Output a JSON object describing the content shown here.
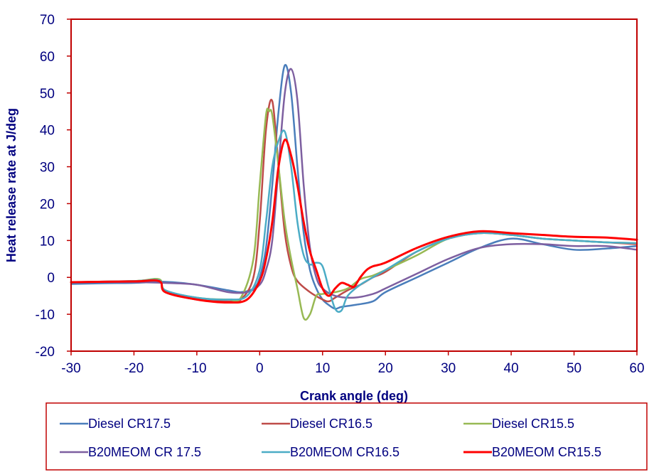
{
  "chart_data": {
    "type": "line",
    "title": "",
    "xlabel": "Crank angle (deg)",
    "ylabel": "Heat release rate at J/deg",
    "xlim": [
      -30,
      60
    ],
    "ylim": [
      -20,
      70
    ],
    "xticks": [
      -30,
      -20,
      -10,
      0,
      10,
      20,
      30,
      40,
      50,
      60
    ],
    "yticks": [
      -20,
      -10,
      0,
      10,
      20,
      30,
      40,
      50,
      60,
      70
    ],
    "grid": false,
    "legend_position": "bottom",
    "series": [
      {
        "name": "Diesel CR17.5",
        "color": "#4A7EBB",
        "width": 2.5,
        "points": [
          [
            -30,
            -1.8
          ],
          [
            -25,
            -1.6
          ],
          [
            -20,
            -1.5
          ],
          [
            -15,
            -1.2
          ],
          [
            -10,
            -2
          ],
          [
            -5,
            -3.5
          ],
          [
            -3,
            -4
          ],
          [
            -1,
            -3
          ],
          [
            0,
            0
          ],
          [
            1,
            8
          ],
          [
            2,
            25
          ],
          [
            3,
            45
          ],
          [
            4,
            57.5
          ],
          [
            5,
            50
          ],
          [
            6,
            30
          ],
          [
            7,
            12
          ],
          [
            8,
            2
          ],
          [
            9,
            -3
          ],
          [
            10,
            -6
          ],
          [
            11,
            -7.5
          ],
          [
            12,
            -8.5
          ],
          [
            13,
            -8
          ],
          [
            15,
            -7.5
          ],
          [
            18,
            -6.5
          ],
          [
            20,
            -4
          ],
          [
            25,
            0
          ],
          [
            30,
            4
          ],
          [
            35,
            8
          ],
          [
            40,
            10.5
          ],
          [
            45,
            9
          ],
          [
            50,
            7.5
          ],
          [
            55,
            7.8
          ],
          [
            60,
            8.5
          ]
        ]
      },
      {
        "name": "Diesel CR16.5",
        "color": "#BE4B48",
        "width": 2.5,
        "points": [
          [
            -30,
            -1.3
          ],
          [
            -20,
            -1
          ],
          [
            -16,
            -0.8
          ],
          [
            -15,
            -4
          ],
          [
            -10,
            -6
          ],
          [
            -5,
            -6.5
          ],
          [
            -3,
            -6
          ],
          [
            -1,
            0
          ],
          [
            0,
            15
          ],
          [
            1,
            40
          ],
          [
            2,
            47.8
          ],
          [
            3,
            30
          ],
          [
            4,
            12
          ],
          [
            5,
            3
          ],
          [
            6,
            -1
          ],
          [
            8,
            -4
          ],
          [
            10,
            -6
          ],
          [
            11,
            -6.5
          ],
          [
            12,
            -5.5
          ],
          [
            14,
            -3.5
          ],
          [
            16,
            -2
          ],
          [
            18,
            0
          ],
          [
            20,
            1.5
          ],
          [
            25,
            7
          ],
          [
            30,
            10.5
          ],
          [
            35,
            12
          ],
          [
            40,
            11.5
          ],
          [
            45,
            10.5
          ],
          [
            50,
            10
          ],
          [
            55,
            9.5
          ],
          [
            60,
            9
          ]
        ]
      },
      {
        "name": "Diesel CR15.5",
        "color": "#98B954",
        "width": 2.5,
        "points": [
          [
            -30,
            -1.3
          ],
          [
            -20,
            -1
          ],
          [
            -16,
            -0.5
          ],
          [
            -15,
            -3.5
          ],
          [
            -10,
            -5.5
          ],
          [
            -5,
            -6
          ],
          [
            -3,
            -5.5
          ],
          [
            -1,
            5
          ],
          [
            0,
            25
          ],
          [
            1,
            44
          ],
          [
            1.5,
            45
          ],
          [
            2,
            44
          ],
          [
            3,
            30
          ],
          [
            4,
            15
          ],
          [
            5,
            5
          ],
          [
            6,
            -3
          ],
          [
            7,
            -11
          ],
          [
            8,
            -10
          ],
          [
            9,
            -5
          ],
          [
            10,
            -4.5
          ],
          [
            12,
            -4
          ],
          [
            14,
            -3
          ],
          [
            16,
            -0.5
          ],
          [
            18,
            0.5
          ],
          [
            20,
            2
          ],
          [
            25,
            6
          ],
          [
            30,
            10.5
          ],
          [
            35,
            12
          ],
          [
            40,
            11.5
          ],
          [
            45,
            10.5
          ],
          [
            50,
            10
          ],
          [
            55,
            9.5
          ],
          [
            60,
            9.3
          ]
        ]
      },
      {
        "name": "B20MEOM CR 17.5",
        "color": "#7D5FA0",
        "width": 2.5,
        "points": [
          [
            -30,
            -1.3
          ],
          [
            -20,
            -1.3
          ],
          [
            -15,
            -1.5
          ],
          [
            -10,
            -2
          ],
          [
            -5,
            -4
          ],
          [
            -2,
            -4
          ],
          [
            0,
            -2
          ],
          [
            1,
            2
          ],
          [
            2,
            10
          ],
          [
            3,
            30
          ],
          [
            4,
            50
          ],
          [
            5,
            56.5
          ],
          [
            6,
            48
          ],
          [
            7,
            25
          ],
          [
            8,
            8
          ],
          [
            9,
            0
          ],
          [
            10,
            -3
          ],
          [
            12,
            -5
          ],
          [
            15,
            -5.5
          ],
          [
            18,
            -4.5
          ],
          [
            20,
            -3
          ],
          [
            25,
            1
          ],
          [
            30,
            5
          ],
          [
            35,
            8
          ],
          [
            40,
            9
          ],
          [
            45,
            9
          ],
          [
            50,
            8.5
          ],
          [
            55,
            8.5
          ],
          [
            60,
            7.5
          ]
        ]
      },
      {
        "name": "B20MEOM CR16.5",
        "color": "#4BACC6",
        "width": 2.5,
        "points": [
          [
            -30,
            -1.3
          ],
          [
            -20,
            -1
          ],
          [
            -16,
            -0.8
          ],
          [
            -15,
            -3.5
          ],
          [
            -10,
            -5.5
          ],
          [
            -5,
            -6
          ],
          [
            -2,
            -5
          ],
          [
            0,
            2
          ],
          [
            1,
            15
          ],
          [
            2,
            30
          ],
          [
            3,
            37
          ],
          [
            4,
            39.5
          ],
          [
            5,
            30
          ],
          [
            6,
            15
          ],
          [
            7,
            6
          ],
          [
            8,
            3.5
          ],
          [
            9,
            4
          ],
          [
            10,
            3
          ],
          [
            11,
            -3
          ],
          [
            12,
            -8.5
          ],
          [
            13,
            -9
          ],
          [
            14,
            -5
          ],
          [
            16,
            -2
          ],
          [
            18,
            0
          ],
          [
            20,
            2
          ],
          [
            25,
            7
          ],
          [
            30,
            10.5
          ],
          [
            35,
            12
          ],
          [
            40,
            11.5
          ],
          [
            45,
            10.5
          ],
          [
            50,
            10
          ],
          [
            55,
            9.5
          ],
          [
            60,
            9.3
          ]
        ]
      },
      {
        "name": "B20MEOM CR15.5",
        "color": "#FF0000",
        "width": 3,
        "points": [
          [
            -30,
            -1.3
          ],
          [
            -20,
            -1.1
          ],
          [
            -16,
            -1
          ],
          [
            -15,
            -4
          ],
          [
            -10,
            -6
          ],
          [
            -5,
            -6.8
          ],
          [
            -2,
            -6
          ],
          [
            0,
            -1
          ],
          [
            1,
            5
          ],
          [
            2,
            15
          ],
          [
            3,
            30
          ],
          [
            4,
            37.3
          ],
          [
            5,
            33
          ],
          [
            6,
            25
          ],
          [
            7,
            15
          ],
          [
            8,
            7
          ],
          [
            9,
            2
          ],
          [
            10,
            -3
          ],
          [
            11,
            -5
          ],
          [
            12,
            -3
          ],
          [
            13,
            -1.5
          ],
          [
            14,
            -2
          ],
          [
            15,
            -2.5
          ],
          [
            16,
            0
          ],
          [
            17,
            2
          ],
          [
            18,
            3
          ],
          [
            20,
            4
          ],
          [
            25,
            8
          ],
          [
            30,
            11
          ],
          [
            35,
            12.5
          ],
          [
            40,
            12
          ],
          [
            45,
            11.5
          ],
          [
            50,
            11
          ],
          [
            55,
            10.8
          ],
          [
            60,
            10.2
          ]
        ]
      }
    ]
  }
}
